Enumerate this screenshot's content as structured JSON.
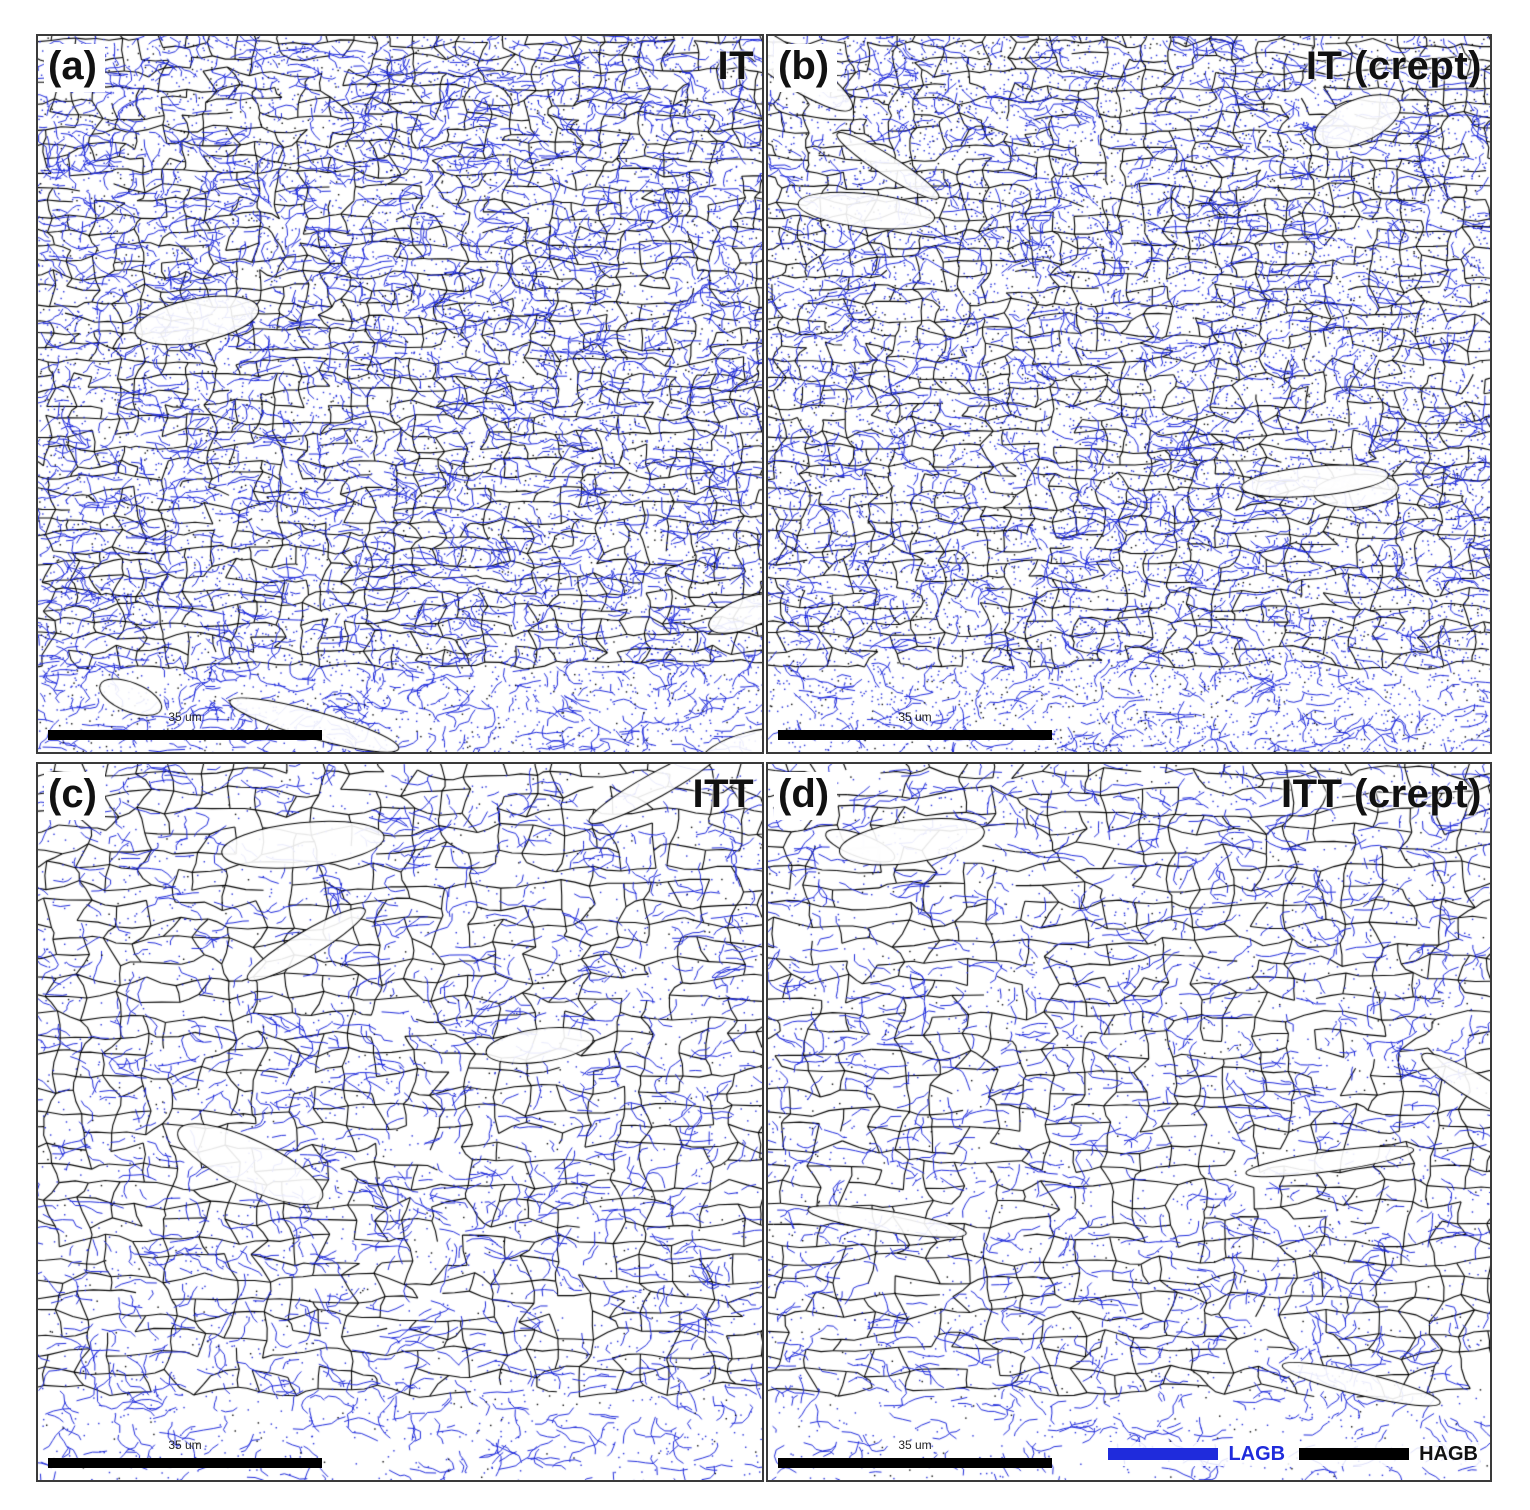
{
  "colors": {
    "lagb": "#1f2bdc",
    "hagb": "#000000",
    "background": "#ffffff",
    "frame": "#3a3a3a"
  },
  "panels": [
    {
      "letter": "(a)",
      "title": "IT",
      "scalebar_label": "35 um",
      "lagb_density": "very high",
      "grain_size": "fine",
      "speckle": "high"
    },
    {
      "letter": "(b)",
      "title": "IT (crept)",
      "scalebar_label": "35 um",
      "lagb_density": "high",
      "grain_size": "fine",
      "speckle": "very high"
    },
    {
      "letter": "(c)",
      "title": "ITT",
      "scalebar_label": "35 um",
      "lagb_density": "medium",
      "grain_size": "medium",
      "speckle": "low"
    },
    {
      "letter": "(d)",
      "title": "ITT (crept)",
      "scalebar_label": "35 um",
      "lagb_density": "medium",
      "grain_size": "medium",
      "speckle": "low"
    }
  ],
  "legend": {
    "lagb_label": "LAGB",
    "hagb_label": "HAGB"
  }
}
